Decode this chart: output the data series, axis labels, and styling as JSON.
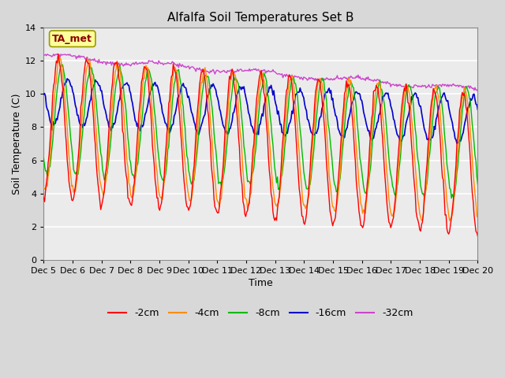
{
  "title": "Alfalfa Soil Temperatures Set B",
  "xlabel": "Time",
  "ylabel": "Soil Temperature (C)",
  "ylim": [
    0,
    14
  ],
  "yticks": [
    0,
    2,
    4,
    6,
    8,
    10,
    12,
    14
  ],
  "x_labels": [
    "Dec 5",
    "Dec 6",
    "Dec 7",
    "Dec 8",
    "Dec 9",
    "Dec 10",
    "Dec 11",
    "Dec 12",
    "Dec 13",
    "Dec 14",
    "Dec 15",
    "Dec 16",
    "Dec 17",
    "Dec 18",
    "Dec 19",
    "Dec 20"
  ],
  "annotation_label": "TA_met",
  "annotation_color": "#8B0000",
  "annotation_bg": "#FFFF99",
  "colors": {
    "-2cm": "#FF0000",
    "-4cm": "#FF8C00",
    "-8cm": "#00BB00",
    "-16cm": "#0000CC",
    "-32cm": "#CC44CC"
  },
  "legend_labels": [
    "-2cm",
    "-4cm",
    "-8cm",
    "-16cm",
    "-32cm"
  ],
  "background_color": "#D8D8D8",
  "plot_bg": "#EBEBEB",
  "grid_color": "#FFFFFF",
  "n_points": 480
}
